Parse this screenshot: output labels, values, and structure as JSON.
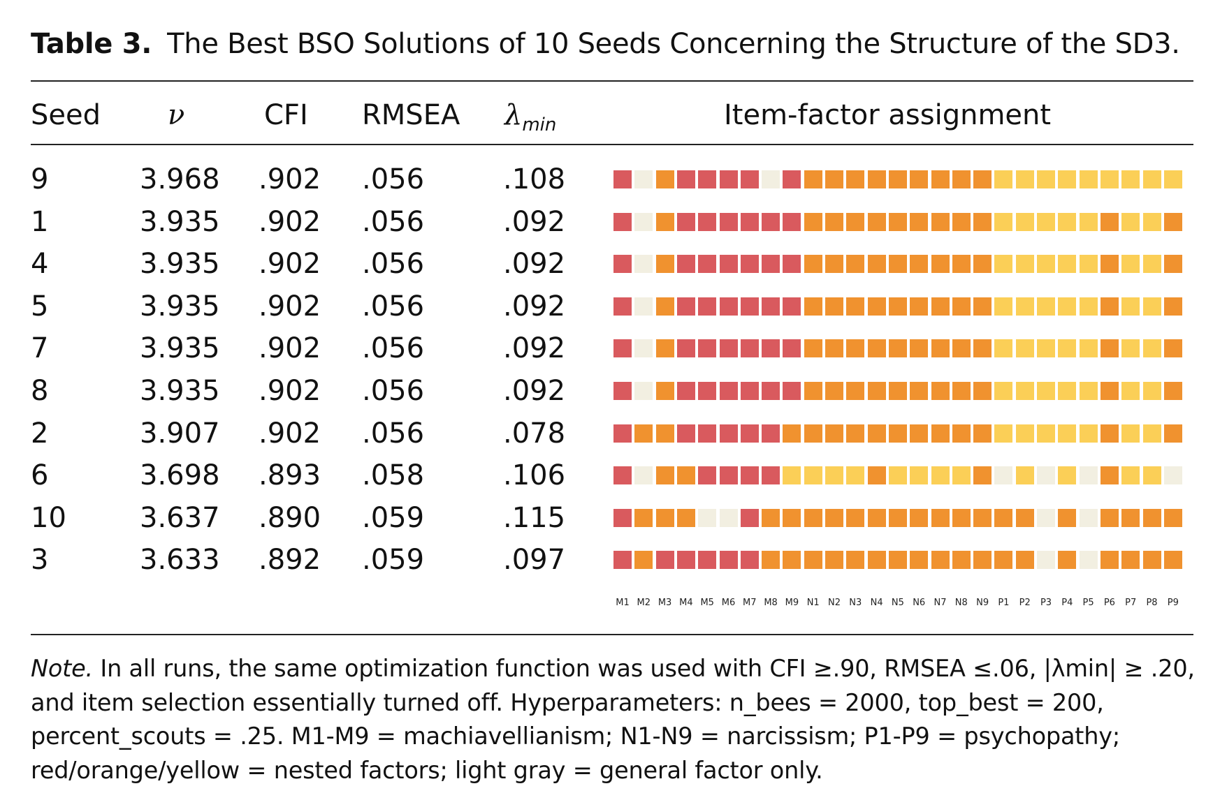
{
  "caption": {
    "label": "Table 3.",
    "title": "The Best BSO Solutions of 10 Seeds Concerning the Structure of the SD3."
  },
  "columns": {
    "seed": "Seed",
    "nu": "ν",
    "cfi": "CFI",
    "rmsea": "RMSEA",
    "lambda": "λ",
    "lambda_sub": "min",
    "assignment": "Item-factor assignment"
  },
  "colors": {
    "r": "#d95a5e",
    "o": "#f0922f",
    "y": "#fbcf57",
    "g": "#f2efe1"
  },
  "items": [
    "M1",
    "M2",
    "M3",
    "M4",
    "M5",
    "M6",
    "M7",
    "M8",
    "M9",
    "N1",
    "N2",
    "N3",
    "N4",
    "N5",
    "N6",
    "N7",
    "N8",
    "N9",
    "P1",
    "P2",
    "P3",
    "P4",
    "P5",
    "P6",
    "P7",
    "P8",
    "P9"
  ],
  "rows": [
    {
      "seed": "9",
      "nu": "3.968",
      "cfi": ".902",
      "rmsea": ".056",
      "lambda": ".108",
      "pattern": [
        "r",
        "g",
        "o",
        "r",
        "r",
        "r",
        "r",
        "g",
        "r",
        "o",
        "o",
        "o",
        "o",
        "o",
        "o",
        "o",
        "o",
        "o",
        "y",
        "y",
        "y",
        "y",
        "y",
        "y",
        "y",
        "y",
        "y"
      ]
    },
    {
      "seed": "1",
      "nu": "3.935",
      "cfi": ".902",
      "rmsea": ".056",
      "lambda": ".092",
      "pattern": [
        "r",
        "g",
        "o",
        "r",
        "r",
        "r",
        "r",
        "r",
        "r",
        "o",
        "o",
        "o",
        "o",
        "o",
        "o",
        "o",
        "o",
        "o",
        "y",
        "y",
        "y",
        "y",
        "y",
        "o",
        "y",
        "y",
        "o"
      ]
    },
    {
      "seed": "4",
      "nu": "3.935",
      "cfi": ".902",
      "rmsea": ".056",
      "lambda": ".092",
      "pattern": [
        "r",
        "g",
        "o",
        "r",
        "r",
        "r",
        "r",
        "r",
        "r",
        "o",
        "o",
        "o",
        "o",
        "o",
        "o",
        "o",
        "o",
        "o",
        "y",
        "y",
        "y",
        "y",
        "y",
        "o",
        "y",
        "y",
        "o"
      ]
    },
    {
      "seed": "5",
      "nu": "3.935",
      "cfi": ".902",
      "rmsea": ".056",
      "lambda": ".092",
      "pattern": [
        "r",
        "g",
        "o",
        "r",
        "r",
        "r",
        "r",
        "r",
        "r",
        "o",
        "o",
        "o",
        "o",
        "o",
        "o",
        "o",
        "o",
        "o",
        "y",
        "y",
        "y",
        "y",
        "y",
        "o",
        "y",
        "y",
        "o"
      ]
    },
    {
      "seed": "7",
      "nu": "3.935",
      "cfi": ".902",
      "rmsea": ".056",
      "lambda": ".092",
      "pattern": [
        "r",
        "g",
        "o",
        "r",
        "r",
        "r",
        "r",
        "r",
        "r",
        "o",
        "o",
        "o",
        "o",
        "o",
        "o",
        "o",
        "o",
        "o",
        "y",
        "y",
        "y",
        "y",
        "y",
        "o",
        "y",
        "y",
        "o"
      ]
    },
    {
      "seed": "8",
      "nu": "3.935",
      "cfi": ".902",
      "rmsea": ".056",
      "lambda": ".092",
      "pattern": [
        "r",
        "g",
        "o",
        "r",
        "r",
        "r",
        "r",
        "r",
        "r",
        "o",
        "o",
        "o",
        "o",
        "o",
        "o",
        "o",
        "o",
        "o",
        "y",
        "y",
        "y",
        "y",
        "y",
        "o",
        "y",
        "y",
        "o"
      ]
    },
    {
      "seed": "2",
      "nu": "3.907",
      "cfi": ".902",
      "rmsea": ".056",
      "lambda": ".078",
      "pattern": [
        "r",
        "o",
        "o",
        "r",
        "r",
        "r",
        "r",
        "r",
        "o",
        "o",
        "o",
        "o",
        "o",
        "o",
        "o",
        "o",
        "o",
        "o",
        "y",
        "y",
        "y",
        "y",
        "y",
        "o",
        "y",
        "y",
        "o"
      ]
    },
    {
      "seed": "6",
      "nu": "3.698",
      "cfi": ".893",
      "rmsea": ".058",
      "lambda": ".106",
      "pattern": [
        "r",
        "g",
        "o",
        "o",
        "r",
        "r",
        "r",
        "r",
        "y",
        "y",
        "y",
        "y",
        "o",
        "y",
        "y",
        "y",
        "y",
        "o",
        "g",
        "y",
        "g",
        "y",
        "g",
        "o",
        "y",
        "y",
        "g"
      ]
    },
    {
      "seed": "10",
      "nu": "3.637",
      "cfi": ".890",
      "rmsea": ".059",
      "lambda": ".115",
      "pattern": [
        "r",
        "o",
        "o",
        "o",
        "g",
        "g",
        "r",
        "o",
        "o",
        "o",
        "o",
        "o",
        "o",
        "o",
        "o",
        "o",
        "o",
        "o",
        "o",
        "o",
        "g",
        "o",
        "g",
        "o",
        "o",
        "o",
        "o"
      ]
    },
    {
      "seed": "3",
      "nu": "3.633",
      "cfi": ".892",
      "rmsea": ".059",
      "lambda": ".097",
      "pattern": [
        "r",
        "o",
        "r",
        "r",
        "r",
        "r",
        "r",
        "o",
        "o",
        "o",
        "o",
        "o",
        "o",
        "o",
        "o",
        "o",
        "o",
        "o",
        "o",
        "o",
        "g",
        "o",
        "g",
        "o",
        "o",
        "o",
        "o"
      ]
    }
  ],
  "note": {
    "lead": "Note.",
    "text": " In all runs, the same optimization function was used with CFI ≥.90, RMSEA ≤.06, |λmin| ≥ .20, and item selection essentially turned off. Hyperparameters: n_bees = 2000, top_best = 200, percent_scouts = .25. M1-M9 = machiavellianism; N1-N9 = narcissism; P1-P9 = psychopathy; red/orange/yellow = nested factors; light gray = general factor only."
  }
}
